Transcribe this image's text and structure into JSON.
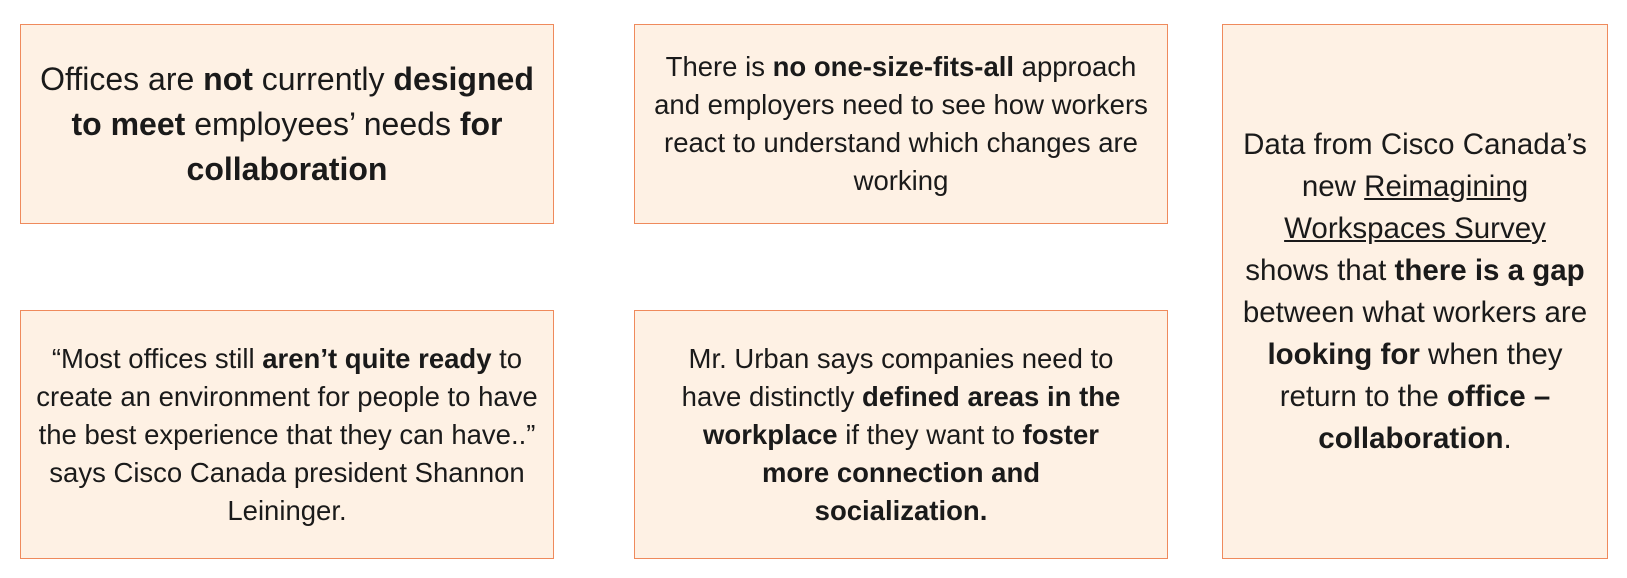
{
  "card_top_left": {
    "t1": "Offices are ",
    "b1": "not",
    "t2": " currently ",
    "b2": "designed to meet",
    "t3": " employees’ needs ",
    "b3": "for collaboration"
  },
  "card_top_middle": {
    "t1": "There is ",
    "b1": "no one-size-fits-all",
    "t2": " approach and employers need to see how workers react to understand which changes are working"
  },
  "card_right": {
    "t1": "Data from Cisco Canada’s new ",
    "link": "Reimagining Workspaces Survey",
    "t2": " shows that ",
    "b1": "there is a gap",
    "t3": " between what workers are ",
    "b2": "looking for",
    "t4": " when they return to the ",
    "b3": "office – collaboration",
    "t5": "."
  },
  "card_bottom_left": {
    "t1": "“Most offices still ",
    "b1": "aren’t quite ready",
    "t2": " to create an environment for people to have the best experience that they can have..” says Cisco Canada president Shannon Leininger."
  },
  "card_bottom_middle": {
    "t1": "Mr. Urban says companies need to have distinctly ",
    "b1": "defined areas in the workplace",
    "t2": " if they want to ",
    "b2": "foster more connection and socialization."
  },
  "colors": {
    "card_background": "#fef1e4",
    "card_border": "#ef8a5c",
    "text": "#1a1a1a"
  }
}
